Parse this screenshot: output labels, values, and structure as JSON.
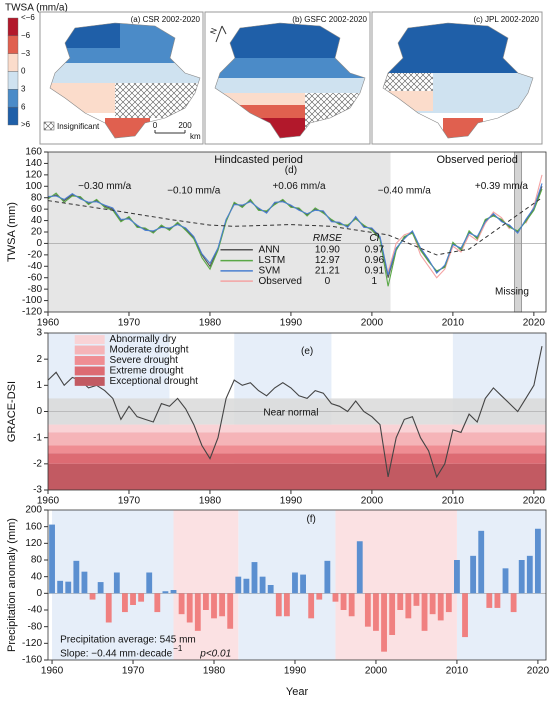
{
  "maps": {
    "colorbar": {
      "title": "TWSA (mm/a)",
      "labels": [
        "<−6",
        "−6",
        "−3",
        "0",
        "3",
        "6",
        ">6"
      ],
      "colors": [
        "#b2182b",
        "#e0604f",
        "#fbdccb",
        "#cfe2f0",
        "#4b8bc8",
        "#1f5fa8"
      ]
    },
    "panels": [
      "(a) CSR 2002-2020",
      "(b) GSFC 2002-2020",
      "(c) JPL 2002-2020"
    ],
    "insignificant": "Insignificant",
    "scale_labels": [
      "0",
      "200"
    ],
    "scale_unit": "km",
    "north": "N"
  },
  "chart_data": [
    {
      "type": "line",
      "panel_label": "(d)",
      "ylabel": "TWSA (mm)",
      "xlim": [
        1960,
        2021.5
      ],
      "xticks": [
        1960,
        1970,
        1980,
        1990,
        2000,
        2010,
        2020
      ],
      "ylim": [
        -120,
        160
      ],
      "yticks": [
        -120,
        -100,
        -80,
        -60,
        -40,
        -20,
        0,
        20,
        40,
        60,
        80,
        100,
        120,
        140,
        160
      ],
      "x": [
        1960,
        1961,
        1962,
        1963,
        1964,
        1965,
        1966,
        1967,
        1968,
        1969,
        1970,
        1971,
        1972,
        1973,
        1974,
        1975,
        1976,
        1977,
        1978,
        1979,
        1980,
        1981,
        1982,
        1983,
        1984,
        1985,
        1986,
        1987,
        1988,
        1989,
        1990,
        1991,
        1992,
        1993,
        1994,
        1995,
        1996,
        1997,
        1998,
        1999,
        2000,
        2001,
        2002,
        2003,
        2004,
        2005,
        2006,
        2007,
        2008,
        2009,
        2010,
        2011,
        2012,
        2013,
        2014,
        2015,
        2016,
        2017,
        2018,
        2019,
        2020,
        2021
      ],
      "metric_headers": [
        "RMSE",
        "CI"
      ],
      "series": [
        {
          "name": "Observed",
          "color": "#f4a3a3",
          "rmse": "0",
          "ci": "1",
          "values": [
            null,
            null,
            null,
            null,
            null,
            null,
            null,
            null,
            null,
            null,
            null,
            null,
            null,
            null,
            null,
            null,
            null,
            null,
            null,
            null,
            null,
            null,
            null,
            null,
            null,
            null,
            null,
            null,
            null,
            null,
            null,
            null,
            null,
            null,
            null,
            null,
            null,
            null,
            null,
            null,
            null,
            null,
            -50,
            0,
            15,
            20,
            -20,
            -40,
            -60,
            -45,
            -5,
            -15,
            15,
            5,
            35,
            55,
            45,
            25,
            null,
            35,
            65,
            120
          ]
        },
        {
          "name": "ANN",
          "color": "#555555",
          "rmse": "10.90",
          "ci": "0.97",
          "values": [
            80,
            85,
            75,
            85,
            80,
            70,
            75,
            65,
            60,
            40,
            45,
            30,
            25,
            20,
            30,
            25,
            35,
            25,
            10,
            -20,
            -40,
            -10,
            40,
            70,
            65,
            75,
            60,
            55,
            70,
            75,
            65,
            60,
            50,
            60,
            55,
            40,
            35,
            30,
            45,
            30,
            25,
            10,
            -60,
            -10,
            10,
            20,
            -10,
            -30,
            -50,
            -40,
            0,
            -10,
            20,
            10,
            40,
            50,
            40,
            30,
            20,
            40,
            60,
            100
          ]
        },
        {
          "name": "LSTM",
          "color": "#5aa847",
          "rmse": "12.97",
          "ci": "0.96",
          "values": [
            78,
            88,
            72,
            83,
            82,
            68,
            77,
            63,
            58,
            38,
            47,
            28,
            27,
            18,
            32,
            23,
            37,
            23,
            8,
            -25,
            -45,
            -12,
            38,
            72,
            63,
            77,
            58,
            57,
            68,
            77,
            63,
            62,
            48,
            62,
            53,
            42,
            33,
            32,
            43,
            32,
            23,
            8,
            -75,
            -12,
            12,
            18,
            -12,
            -32,
            -48,
            -42,
            2,
            -12,
            22,
            8,
            42,
            48,
            42,
            28,
            22,
            38,
            58,
            95
          ]
        },
        {
          "name": "SVM",
          "color": "#4a7fd0",
          "rmse": "21.21",
          "ci": "0.91",
          "values": [
            82,
            83,
            77,
            87,
            78,
            72,
            73,
            67,
            62,
            42,
            43,
            32,
            23,
            22,
            28,
            27,
            33,
            27,
            12,
            -18,
            -35,
            -8,
            42,
            68,
            67,
            73,
            62,
            53,
            72,
            73,
            67,
            58,
            52,
            58,
            57,
            38,
            37,
            28,
            47,
            28,
            27,
            12,
            -55,
            -8,
            8,
            22,
            -8,
            -28,
            -52,
            -38,
            -2,
            -8,
            18,
            12,
            38,
            52,
            38,
            32,
            18,
            42,
            62,
            105
          ]
        }
      ],
      "trend": {
        "x": [
          1960,
          1968,
          1975,
          1980,
          1983,
          1990,
          1995,
          2002,
          2008,
          2012,
          2021
        ],
        "values": [
          75,
          58,
          42,
          32,
          30,
          33,
          30,
          15,
          -20,
          -10,
          80
        ]
      },
      "hindcast_range": [
        1960,
        2002.3
      ],
      "missing_range": [
        2017.6,
        2018.5
      ],
      "annotations": [
        "Hindcasted period",
        "Observed period",
        "−0.30 mm/a",
        "−0.10 mm/a",
        "+0.06 mm/a",
        "−0.40 mm/a",
        "+0.39 mm/a",
        "Missing"
      ]
    },
    {
      "type": "line",
      "panel_label": "(e)",
      "ylabel": "GRACE-DSI",
      "xlim": [
        1960,
        2021.5
      ],
      "xticks": [
        1960,
        1970,
        1980,
        1990,
        2000,
        2010,
        2020
      ],
      "ylim": [
        -3,
        3
      ],
      "yticks": [
        -3,
        -2,
        -1,
        0,
        1,
        2,
        3
      ],
      "x": [
        1960,
        1961,
        1962,
        1963,
        1964,
        1965,
        1966,
        1967,
        1968,
        1969,
        1970,
        1971,
        1972,
        1973,
        1974,
        1975,
        1976,
        1977,
        1978,
        1979,
        1980,
        1981,
        1982,
        1983,
        1984,
        1985,
        1986,
        1987,
        1988,
        1989,
        1990,
        1991,
        1992,
        1993,
        1994,
        1995,
        1996,
        1997,
        1998,
        1999,
        2000,
        2001,
        2002,
        2003,
        2004,
        2005,
        2006,
        2007,
        2008,
        2009,
        2010,
        2011,
        2012,
        2013,
        2014,
        2015,
        2016,
        2017,
        2018,
        2019,
        2020,
        2021
      ],
      "series": [
        {
          "color": "#444444",
          "values": [
            1.2,
            1.5,
            1.0,
            1.3,
            1.2,
            0.9,
            1.0,
            0.8,
            0.5,
            -0.3,
            0.2,
            -0.2,
            -0.3,
            -0.4,
            0.3,
            0.2,
            0.5,
            0.1,
            -0.5,
            -1.3,
            -1.8,
            -1.0,
            0.5,
            1.2,
            1.0,
            1.1,
            0.8,
            0.6,
            0.9,
            1.1,
            0.9,
            0.6,
            0.5,
            0.8,
            0.7,
            0.3,
            0.2,
            0.0,
            0.4,
            0.0,
            -0.2,
            -0.5,
            -2.5,
            -1.0,
            -0.3,
            -0.2,
            -1.0,
            -1.5,
            -2.5,
            -2.0,
            -0.7,
            -0.8,
            -0.1,
            -0.4,
            0.5,
            0.9,
            0.6,
            0.3,
            0.0,
            0.5,
            1.0,
            2.5
          ]
        }
      ],
      "normal_band": {
        "label": "Near normal",
        "range": [
          -0.5,
          0.5
        ],
        "color": "#d9d9d9"
      },
      "bands": [
        {
          "label": "Abnormally dry",
          "range": [
            -0.8,
            -0.5
          ],
          "color": "#f9d3d6"
        },
        {
          "label": "Moderate drought",
          "range": [
            -1.3,
            -0.8
          ],
          "color": "#f5b4b8"
        },
        {
          "label": "Severe drought",
          "range": [
            -1.6,
            -1.3
          ],
          "color": "#ef8d93"
        },
        {
          "label": "Extreme drought",
          "range": [
            -2,
            -1.6
          ],
          "color": "#dd6b73"
        },
        {
          "label": "Exceptional drought",
          "range": [
            -3,
            -2
          ],
          "color": "#c25a62"
        }
      ],
      "wet_periods": [
        [
          1960,
          1975
        ],
        [
          1983,
          1995
        ],
        [
          2010,
          2021.5
        ]
      ],
      "wet_color": "#e6eef9"
    },
    {
      "type": "bar",
      "panel_label": "(f)",
      "ylabel": "Precipitation anomaly (mm)",
      "xlabel": "Year",
      "xlim": [
        1959.5,
        2021
      ],
      "xticks": [
        1960,
        1970,
        1980,
        1990,
        2000,
        2010,
        2020
      ],
      "ylim": [
        -160,
        200
      ],
      "yticks": [
        -160,
        -120,
        -80,
        -40,
        0,
        40,
        80,
        120,
        160,
        200
      ],
      "x": [
        1960,
        1961,
        1962,
        1963,
        1964,
        1965,
        1966,
        1967,
        1968,
        1969,
        1970,
        1971,
        1972,
        1973,
        1974,
        1975,
        1976,
        1977,
        1978,
        1979,
        1980,
        1981,
        1982,
        1983,
        1984,
        1985,
        1986,
        1987,
        1988,
        1989,
        1990,
        1991,
        1992,
        1993,
        1994,
        1995,
        1996,
        1997,
        1998,
        1999,
        2000,
        2001,
        2002,
        2003,
        2004,
        2005,
        2006,
        2007,
        2008,
        2009,
        2010,
        2011,
        2012,
        2013,
        2014,
        2015,
        2016,
        2017,
        2018,
        2019,
        2020
      ],
      "values": [
        165,
        30,
        28,
        78,
        52,
        -15,
        27,
        -70,
        50,
        -45,
        -28,
        -20,
        50,
        -45,
        5,
        8,
        -50,
        -70,
        -90,
        -40,
        -60,
        -55,
        -85,
        40,
        35,
        75,
        40,
        20,
        -55,
        -55,
        50,
        45,
        -60,
        -15,
        78,
        -20,
        -40,
        -55,
        125,
        -80,
        -90,
        -140,
        -100,
        -40,
        -60,
        -30,
        -90,
        -50,
        -65,
        -45,
        80,
        -105,
        90,
        150,
        -35,
        -35,
        60,
        -45,
        80,
        90,
        155
      ],
      "colors": {
        "positive": "#5b8fd0",
        "negative": "#f08080"
      },
      "wet_periods": [
        [
          1960,
          1975
        ],
        [
          1983,
          1995
        ],
        [
          2010,
          2021
        ]
      ],
      "wet_color": "#e6eef9",
      "dry_periods": [
        [
          1975,
          1983
        ],
        [
          1995,
          2010
        ]
      ],
      "dry_color": "#fbe1e3",
      "annotations": [
        "Precipitation average: 545 mm",
        "Slope: −0.44 mm·decade",
        "−1",
        "p<0.01"
      ]
    }
  ]
}
